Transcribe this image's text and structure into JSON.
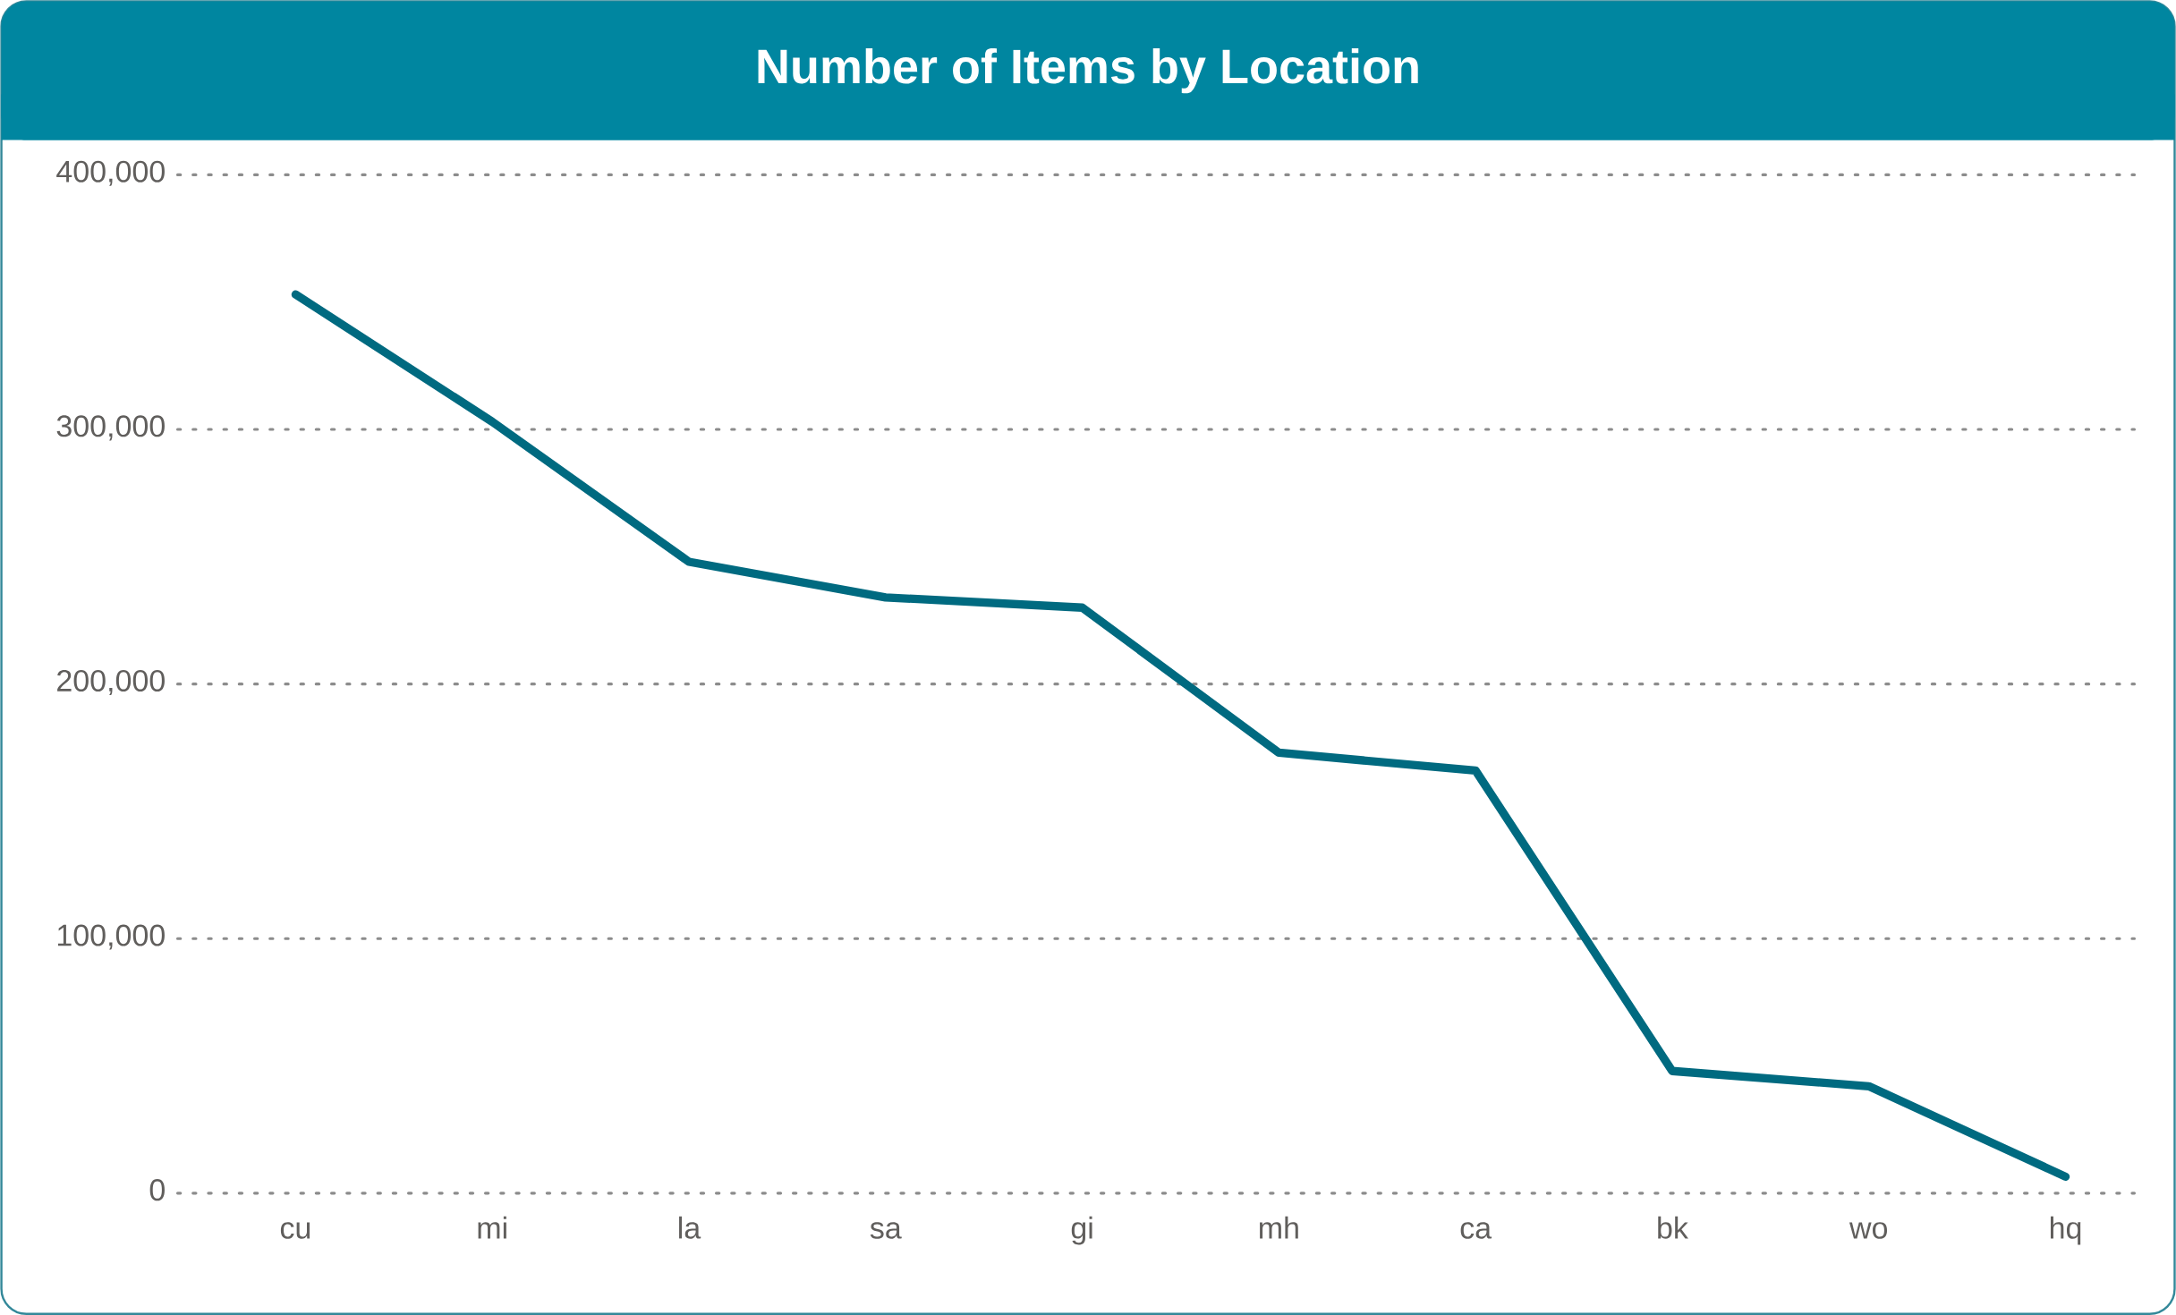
{
  "chart_data": {
    "type": "line",
    "title": "Number of Items by Location",
    "categories": [
      "cu",
      "mi",
      "la",
      "sa",
      "gi",
      "mh",
      "ca",
      "bk",
      "wo",
      "hq"
    ],
    "values": [
      353000,
      303000,
      248000,
      234000,
      230000,
      173000,
      166000,
      48000,
      42000,
      6500
    ],
    "color": "#006a80",
    "ylim": [
      0,
      400000
    ],
    "yticks": [
      {
        "value": 0,
        "label": "0"
      },
      {
        "value": 100000,
        "label": "100,000"
      },
      {
        "value": 200000,
        "label": "200,000"
      },
      {
        "value": 300000,
        "label": "300,000"
      },
      {
        "value": 400000,
        "label": "400,000"
      }
    ],
    "grid": "y"
  }
}
